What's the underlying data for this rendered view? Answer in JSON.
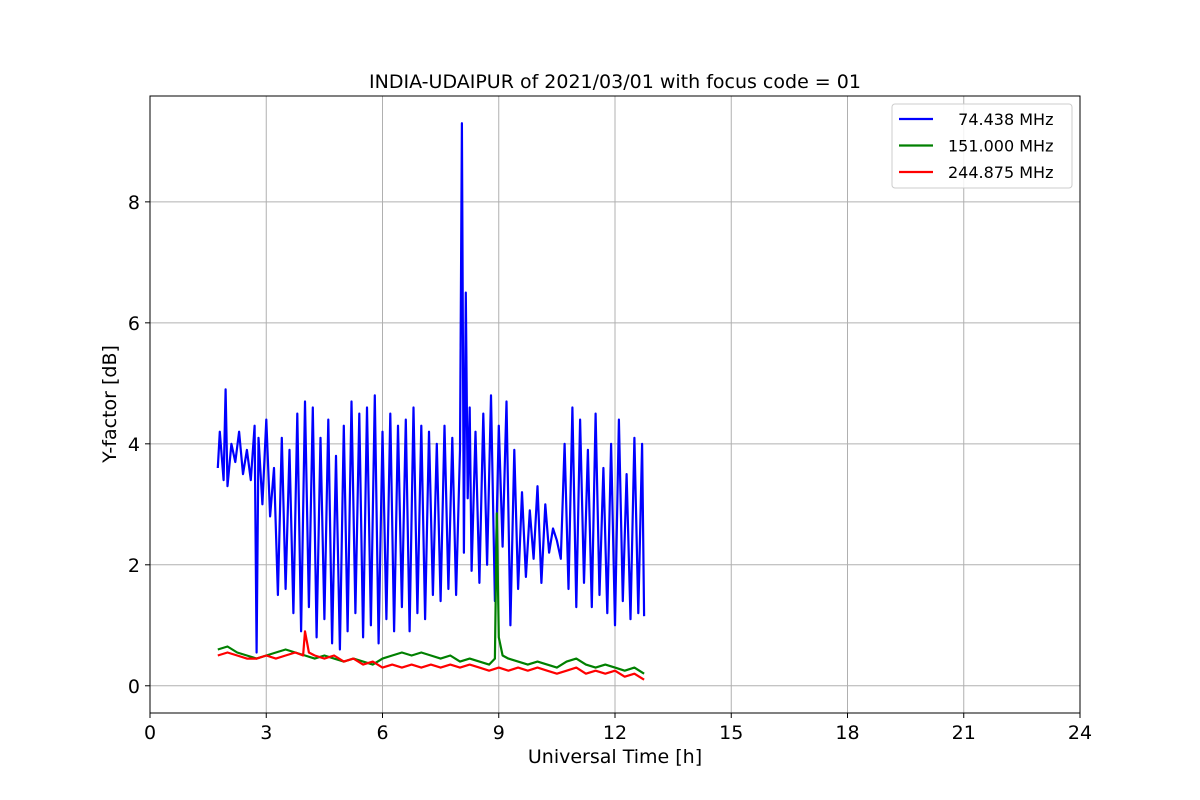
{
  "chart_data": {
    "type": "line",
    "title": "INDIA-UDAIPUR of 2021/03/01 with focus code = 01",
    "xlabel": "Universal Time [h]",
    "ylabel": "Y-factor [dB]",
    "xlim": [
      0,
      24
    ],
    "ylim": [
      -0.45,
      9.75
    ],
    "xticks": [
      0,
      3,
      6,
      9,
      12,
      15,
      18,
      21,
      24
    ],
    "yticks": [
      0,
      2,
      4,
      6,
      8
    ],
    "grid": true,
    "legend_position": "top-right",
    "series": [
      {
        "name": "  74.438 MHz",
        "color": "#0000ff",
        "x": [
          1.75,
          1.8,
          1.9,
          1.95,
          2.0,
          2.1,
          2.2,
          2.3,
          2.4,
          2.5,
          2.6,
          2.7,
          2.75,
          2.8,
          2.9,
          3.0,
          3.1,
          3.2,
          3.3,
          3.4,
          3.5,
          3.6,
          3.7,
          3.8,
          3.9,
          4.0,
          4.1,
          4.2,
          4.3,
          4.4,
          4.5,
          4.6,
          4.7,
          4.8,
          4.9,
          5.0,
          5.1,
          5.2,
          5.3,
          5.4,
          5.5,
          5.6,
          5.7,
          5.8,
          5.9,
          6.0,
          6.1,
          6.2,
          6.3,
          6.4,
          6.5,
          6.6,
          6.7,
          6.8,
          6.9,
          7.0,
          7.1,
          7.2,
          7.3,
          7.4,
          7.5,
          7.6,
          7.7,
          7.8,
          7.9,
          8.0,
          8.05,
          8.1,
          8.15,
          8.2,
          8.25,
          8.3,
          8.4,
          8.5,
          8.6,
          8.7,
          8.8,
          8.9,
          9.0,
          9.1,
          9.2,
          9.3,
          9.4,
          9.5,
          9.6,
          9.7,
          9.8,
          9.9,
          10.0,
          10.1,
          10.2,
          10.3,
          10.4,
          10.5,
          10.6,
          10.7,
          10.8,
          10.9,
          11.0,
          11.1,
          11.2,
          11.3,
          11.4,
          11.5,
          11.6,
          11.7,
          11.8,
          11.9,
          12.0,
          12.1,
          12.2,
          12.3,
          12.4,
          12.5,
          12.6,
          12.7,
          12.75
        ],
        "y": [
          3.6,
          4.2,
          3.4,
          4.9,
          3.3,
          4.0,
          3.7,
          4.2,
          3.5,
          3.9,
          3.4,
          4.3,
          0.55,
          4.1,
          3.0,
          4.4,
          2.8,
          3.6,
          1.5,
          4.1,
          1.6,
          3.9,
          1.2,
          4.5,
          0.9,
          4.7,
          1.3,
          4.6,
          0.8,
          4.1,
          1.1,
          4.4,
          0.7,
          3.8,
          0.6,
          4.3,
          0.9,
          4.7,
          1.2,
          4.5,
          0.8,
          4.6,
          1.0,
          4.8,
          0.7,
          4.2,
          1.1,
          4.5,
          0.9,
          4.3,
          1.3,
          4.4,
          0.9,
          4.6,
          1.2,
          4.3,
          1.1,
          4.2,
          1.5,
          4.0,
          1.4,
          4.3,
          1.6,
          4.1,
          1.5,
          3.9,
          9.3,
          2.2,
          6.5,
          3.1,
          4.6,
          1.9,
          4.2,
          1.7,
          4.5,
          2.0,
          4.8,
          1.4,
          4.3,
          2.3,
          4.7,
          1.0,
          3.9,
          1.6,
          3.2,
          1.8,
          2.9,
          2.1,
          3.3,
          1.7,
          3.0,
          2.2,
          2.6,
          2.4,
          2.1,
          4.0,
          1.6,
          4.6,
          1.3,
          4.4,
          1.7,
          3.9,
          1.3,
          4.5,
          1.5,
          3.6,
          1.2,
          4.0,
          1.0,
          4.4,
          1.4,
          3.5,
          1.1,
          4.1,
          1.2,
          4.0,
          1.15
        ]
      },
      {
        "name": "151.000 MHz",
        "color": "#008000",
        "x": [
          1.75,
          2.0,
          2.25,
          2.5,
          2.75,
          3.0,
          3.25,
          3.5,
          3.75,
          4.0,
          4.25,
          4.5,
          4.75,
          5.0,
          5.25,
          5.5,
          5.75,
          6.0,
          6.25,
          6.5,
          6.75,
          7.0,
          7.25,
          7.5,
          7.75,
          8.0,
          8.25,
          8.5,
          8.75,
          8.9,
          8.95,
          9.0,
          9.1,
          9.25,
          9.5,
          9.75,
          10.0,
          10.25,
          10.5,
          10.75,
          11.0,
          11.25,
          11.5,
          11.75,
          12.0,
          12.25,
          12.5,
          12.75
        ],
        "y": [
          0.6,
          0.65,
          0.55,
          0.5,
          0.45,
          0.5,
          0.55,
          0.6,
          0.55,
          0.5,
          0.45,
          0.5,
          0.45,
          0.4,
          0.45,
          0.4,
          0.35,
          0.45,
          0.5,
          0.55,
          0.5,
          0.55,
          0.5,
          0.45,
          0.5,
          0.4,
          0.45,
          0.4,
          0.35,
          0.45,
          2.85,
          0.8,
          0.5,
          0.45,
          0.4,
          0.35,
          0.4,
          0.35,
          0.3,
          0.4,
          0.45,
          0.35,
          0.3,
          0.35,
          0.3,
          0.25,
          0.3,
          0.2
        ]
      },
      {
        "name": "244.875 MHz",
        "color": "#ff0000",
        "x": [
          1.75,
          2.0,
          2.25,
          2.5,
          2.75,
          3.0,
          3.25,
          3.5,
          3.75,
          3.95,
          4.0,
          4.1,
          4.25,
          4.5,
          4.75,
          5.0,
          5.25,
          5.5,
          5.75,
          6.0,
          6.25,
          6.5,
          6.75,
          7.0,
          7.25,
          7.5,
          7.75,
          8.0,
          8.25,
          8.5,
          8.75,
          9.0,
          9.25,
          9.5,
          9.75,
          10.0,
          10.25,
          10.5,
          10.75,
          11.0,
          11.25,
          11.5,
          11.75,
          12.0,
          12.25,
          12.5,
          12.75
        ],
        "y": [
          0.5,
          0.55,
          0.5,
          0.45,
          0.45,
          0.5,
          0.45,
          0.5,
          0.55,
          0.5,
          0.9,
          0.55,
          0.5,
          0.45,
          0.5,
          0.4,
          0.45,
          0.35,
          0.4,
          0.3,
          0.35,
          0.3,
          0.35,
          0.3,
          0.35,
          0.3,
          0.35,
          0.3,
          0.35,
          0.3,
          0.25,
          0.3,
          0.25,
          0.3,
          0.25,
          0.3,
          0.25,
          0.2,
          0.25,
          0.3,
          0.2,
          0.25,
          0.2,
          0.25,
          0.15,
          0.2,
          0.1
        ]
      }
    ]
  }
}
